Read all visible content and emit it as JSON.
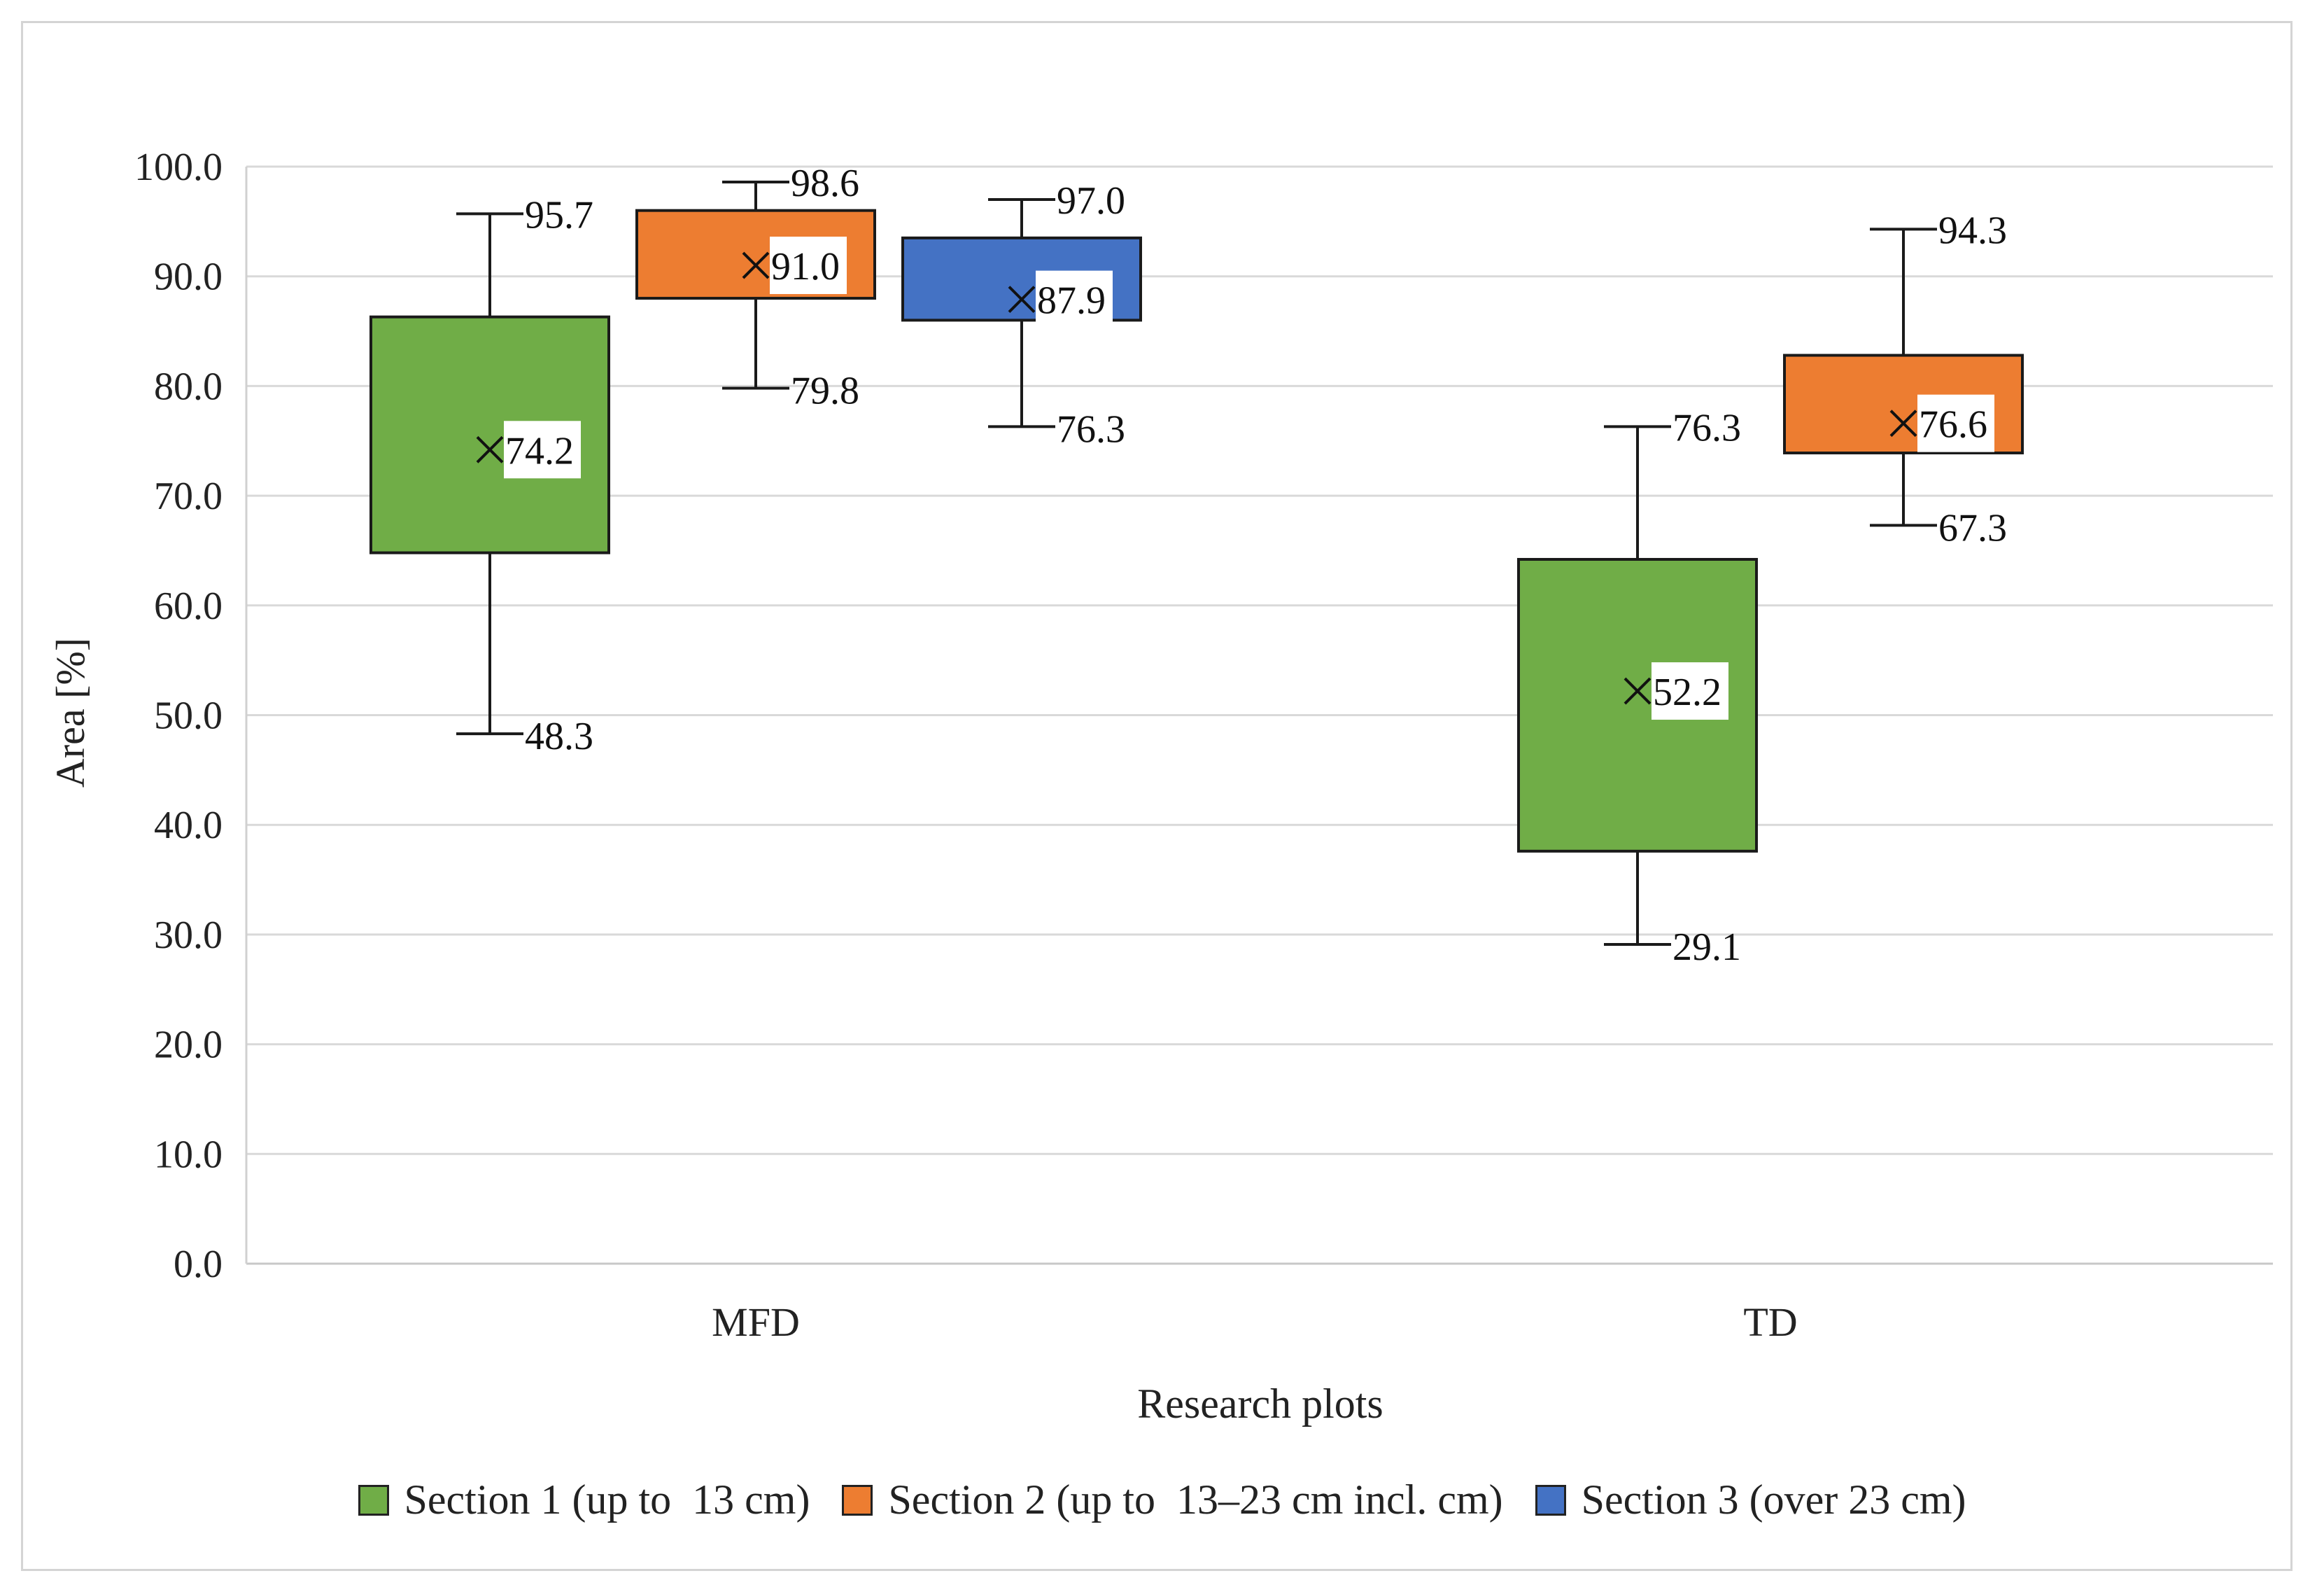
{
  "chart_data": {
    "type": "box",
    "title": "",
    "xlabel": "Research plots",
    "ylabel": "Area [%]",
    "ylim": [
      0,
      100
    ],
    "ytick_step": 10,
    "ytick_labels": [
      "0.0",
      "10.0",
      "20.0",
      "30.0",
      "40.0",
      "50.0",
      "60.0",
      "70.0",
      "80.0",
      "90.0",
      "100.0"
    ],
    "grid": true,
    "legend_position": "bottom",
    "categories": [
      "MFD",
      "TD"
    ],
    "series": [
      {
        "name": "Section 1 (up to  13 cm)",
        "color": "#70ad47",
        "boxes": [
          {
            "category": "MFD",
            "min": 48.3,
            "q1": 64.8,
            "mean": 74.2,
            "q3": 86.3,
            "max": 95.7
          },
          {
            "category": "TD",
            "min": 29.1,
            "q1": 37.6,
            "mean": 52.2,
            "q3": 64.2,
            "max": 76.3
          }
        ]
      },
      {
        "name": "Section 2 (up to  13–23 cm incl. cm)",
        "color": "#ed7d31",
        "boxes": [
          {
            "category": "MFD",
            "min": 79.8,
            "q1": 88.0,
            "mean": 91.0,
            "q3": 96.0,
            "max": 98.6
          },
          {
            "category": "TD",
            "min": 67.3,
            "q1": 73.9,
            "mean": 76.6,
            "q3": 82.8,
            "max": 94.3
          }
        ]
      },
      {
        "name": "Section 3 (over 23 cm)",
        "color": "#4472c4",
        "boxes": [
          {
            "category": "MFD",
            "min": 76.3,
            "q1": 86.0,
            "mean": 87.9,
            "q3": 93.5,
            "max": 97.0
          }
        ]
      }
    ],
    "labels": [
      {
        "series": 0,
        "box": 0,
        "max": "95.7",
        "mean": "74.2",
        "min": "48.3"
      },
      {
        "series": 0,
        "box": 1,
        "max": "76.3",
        "mean": "52.2",
        "min": "29.1"
      },
      {
        "series": 1,
        "box": 0,
        "max": "98.6",
        "mean": "91.0",
        "min": "79.8"
      },
      {
        "series": 1,
        "box": 1,
        "max": "94.3",
        "mean": "76.6",
        "min": "67.3"
      },
      {
        "series": 2,
        "box": 0,
        "max": "97.0",
        "mean": "87.9",
        "min": "76.3"
      }
    ]
  }
}
